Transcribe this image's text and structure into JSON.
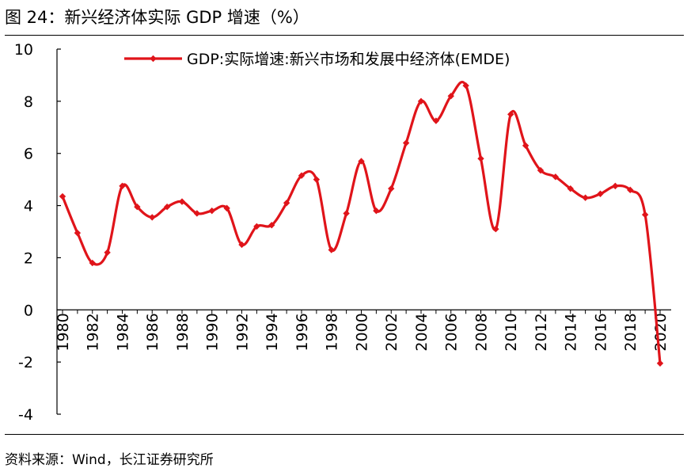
{
  "figure": {
    "title": "图 24：新兴经济体实际 GDP 增速（%）",
    "source": "资料来源：Wind，长江证券研究所"
  },
  "colors": {
    "series": "#e0141a",
    "axis": "#000000",
    "rules": "#000000"
  },
  "chart_data": {
    "type": "line",
    "title": "",
    "xlabel": "",
    "ylabel": "",
    "ylim": [
      -4,
      10
    ],
    "yticks": [
      10,
      8,
      6,
      4,
      2,
      0,
      -2,
      -4
    ],
    "x_tick_labels": [
      "1980",
      "1982",
      "1984",
      "1986",
      "1988",
      "1990",
      "1992",
      "1994",
      "1996",
      "1998",
      "2000",
      "2002",
      "2004",
      "2006",
      "2008",
      "2010",
      "2012",
      "2014",
      "2016",
      "2018",
      "2020"
    ],
    "x": [
      1980,
      1981,
      1982,
      1983,
      1984,
      1985,
      1986,
      1987,
      1988,
      1989,
      1990,
      1991,
      1992,
      1993,
      1994,
      1995,
      1996,
      1997,
      1998,
      1999,
      2000,
      2001,
      2002,
      2003,
      2004,
      2005,
      2006,
      2007,
      2008,
      2009,
      2010,
      2011,
      2012,
      2013,
      2014,
      2015,
      2016,
      2017,
      2018,
      2019,
      2020
    ],
    "series": [
      {
        "name": "GDP:实际增速:新兴市场和发展中经济体(EMDE)",
        "values": [
          4.35,
          2.95,
          1.8,
          2.2,
          4.75,
          3.95,
          3.55,
          3.95,
          4.15,
          3.7,
          3.8,
          3.9,
          2.5,
          3.2,
          3.25,
          4.1,
          5.15,
          5.0,
          2.3,
          3.7,
          5.7,
          3.8,
          4.65,
          6.4,
          8.0,
          7.25,
          8.2,
          8.6,
          5.8,
          3.1,
          7.5,
          6.3,
          5.35,
          5.1,
          4.65,
          4.3,
          4.45,
          4.75,
          4.6,
          3.65,
          -2.05
        ]
      }
    ],
    "legend_position": "top"
  }
}
